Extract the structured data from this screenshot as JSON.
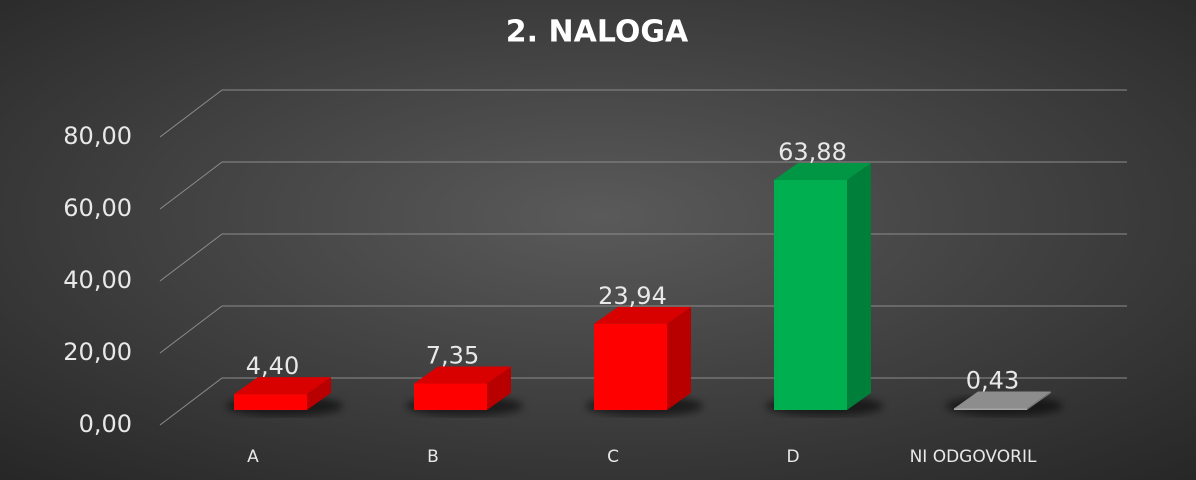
{
  "chart_data": {
    "type": "bar3d",
    "title": "2. NALOGA",
    "categories": [
      "A",
      "B",
      "C",
      "D",
      "NI ODGOVORIL"
    ],
    "values": [
      4.4,
      7.35,
      23.94,
      63.88,
      0.43
    ],
    "value_labels": [
      "4,40",
      "7,35",
      "23,94",
      "63,88",
      "0,43"
    ],
    "colors": [
      "#ff0000",
      "#ff0000",
      "#ff0000",
      "#00b050",
      "#a6a6a6"
    ],
    "ylim": [
      0,
      80
    ],
    "yticks": [
      {
        "value": 0,
        "label": "0,00"
      },
      {
        "value": 20,
        "label": "20,00"
      },
      {
        "value": 40,
        "label": "40,00"
      },
      {
        "value": 60,
        "label": "60,00"
      },
      {
        "value": 80,
        "label": "80,00"
      }
    ],
    "grid": true
  }
}
